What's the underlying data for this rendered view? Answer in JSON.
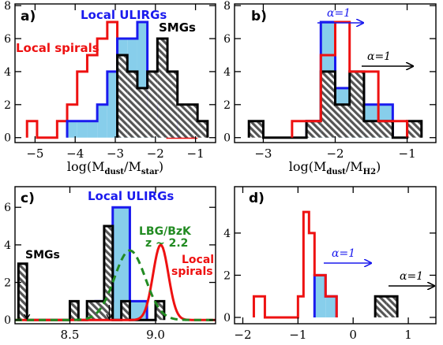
{
  "colors": {
    "spirals": "#ee1111",
    "ulirgs": "#1a1aee",
    "ulirgs_fill": "#87ceeb",
    "smgs": "#000000",
    "hatch_fill": "#999999",
    "lbg": "#228b22"
  },
  "chart_data": [
    {
      "type": "bar",
      "panel_label": "a)",
      "xlabel": "log(M",
      "xlabel_sub1": "dust",
      "xlabel_mid": "/M",
      "xlabel_sub2": "star",
      "xlabel_end": ")",
      "xlim": [
        -5.5,
        -0.5
      ],
      "ylim": [
        -0.3,
        8.1
      ],
      "xticks": [
        -5,
        -4,
        -3,
        -2,
        -1
      ],
      "xtick_labels": [
        "−5",
        "−4",
        "−3",
        "−2",
        "−1"
      ],
      "yticks": [
        0,
        2,
        4,
        6,
        8
      ],
      "ytick_labels": [
        "0",
        "2",
        "4",
        "6",
        "8"
      ],
      "series": [
        {
          "name": "Local spirals",
          "style": "step-red",
          "edges": [
            -5.2,
            -4.95,
            -4.7,
            -4.45,
            -4.2,
            -3.95,
            -3.7,
            -3.45,
            -3.2,
            -2.95,
            -2.7,
            -2.45,
            -2.2,
            -1.95,
            -1.7,
            -1.45,
            -1.2,
            -0.95
          ],
          "values": [
            1,
            0,
            0,
            1,
            2,
            4,
            5,
            6,
            7,
            5,
            4,
            4,
            2,
            1,
            0,
            0,
            0
          ]
        },
        {
          "name": "Local ULIRGs",
          "style": "filled-blue",
          "edges": [
            -4.2,
            -3.95,
            -3.7,
            -3.45,
            -3.2,
            -2.95,
            -2.7,
            -2.45,
            -2.2,
            -1.95,
            -1.7,
            -1.45
          ],
          "values": [
            1,
            1,
            1,
            2,
            4,
            6,
            6,
            7,
            2,
            1,
            1
          ]
        },
        {
          "name": "SMGs",
          "style": "hatched-black",
          "edges": [
            -2.95,
            -2.7,
            -2.45,
            -2.2,
            -1.95,
            -1.7,
            -1.45,
            -1.2,
            -0.95,
            -0.7
          ],
          "values": [
            5,
            4,
            3,
            4,
            6,
            4,
            2,
            2,
            1
          ]
        }
      ],
      "annotations": [
        {
          "text": "Local ULIRGs",
          "color": "ulirgs"
        },
        {
          "text": "Local spirals",
          "color": "spirals"
        },
        {
          "text": "SMGs",
          "color": "smgs"
        }
      ]
    },
    {
      "type": "bar",
      "panel_label": "b)",
      "xlabel": "log(M",
      "xlabel_sub1": "dust",
      "xlabel_mid": "/M",
      "xlabel_sub2": "H2",
      "xlabel_end": ")",
      "xlim": [
        -3.4,
        -0.6
      ],
      "ylim": [
        -0.3,
        8.1
      ],
      "xticks": [
        -3,
        -2,
        -1
      ],
      "xtick_labels": [
        "−3",
        "−2",
        "−1"
      ],
      "yticks": [
        0,
        2,
        4,
        6,
        8
      ],
      "ytick_labels": [
        "0",
        "2",
        "4",
        "6",
        "8"
      ],
      "series": [
        {
          "name": "Local ULIRGs",
          "style": "filled-blue",
          "edges": [
            -2.4,
            -2.2,
            -2.0,
            -1.8,
            -1.6,
            -1.4,
            -1.2
          ],
          "values": [
            1,
            7,
            3,
            3,
            2,
            2
          ]
        },
        {
          "name": "SMGs",
          "style": "hatched-black",
          "edges": [
            -3.2,
            -3.0,
            -2.8,
            -2.6,
            -2.4,
            -2.2,
            -2.0,
            -1.8,
            -1.6,
            -1.4,
            -1.2,
            -1.0,
            -0.8
          ],
          "values": [
            1,
            0,
            0,
            0,
            1,
            4,
            2,
            4,
            1,
            1,
            0,
            1
          ]
        },
        {
          "name": "Local spirals",
          "style": "step-red",
          "edges": [
            -2.6,
            -2.4,
            -2.2,
            -2.0,
            -1.8,
            -1.6,
            -1.4,
            -1.2,
            -1.0
          ],
          "values": [
            1,
            1,
            5,
            7,
            4,
            4,
            1,
            1
          ]
        }
      ],
      "annotations": [
        {
          "text": "α=1",
          "color": "ulirgs"
        },
        {
          "text": "α=1",
          "color": "smgs"
        }
      ]
    },
    {
      "type": "bar",
      "panel_label": "c)",
      "xlabel": "",
      "xlim": [
        8.18,
        9.35
      ],
      "ylim": [
        -0.2,
        7.1
      ],
      "xticks": [
        8.5,
        9.0
      ],
      "xtick_labels": [
        "8.5",
        "9.0"
      ],
      "yticks": [
        0,
        2,
        4,
        6
      ],
      "ytick_labels": [
        "0",
        "2",
        "4",
        "6"
      ],
      "series": [
        {
          "name": "Local ULIRGs",
          "style": "filled-blue",
          "edges": [
            8.65,
            8.75,
            8.85,
            8.95
          ],
          "values": [
            1,
            6,
            1
          ]
        },
        {
          "name": "SMGs",
          "style": "hatched-black",
          "edges": [
            8.2,
            8.25,
            8.3,
            8.35,
            8.4,
            8.45,
            8.5,
            8.55,
            8.6,
            8.65,
            8.7,
            8.75,
            8.8,
            8.85,
            8.9,
            8.95,
            9.0,
            9.05
          ],
          "values": [
            3,
            0,
            0,
            0,
            0,
            0,
            1,
            0,
            1,
            1,
            5,
            0,
            1,
            0,
            0,
            0,
            1
          ]
        },
        {
          "name": "Local spirals",
          "style": "gaussian-red",
          "mu": 9.03,
          "sigma": 0.045,
          "amp": 4.0
        },
        {
          "name": "LBG/BzK z ~ 2.2",
          "style": "gaussian-green-dashed",
          "mu": 8.85,
          "sigma": 0.09,
          "amp": 3.7
        }
      ],
      "arrows_x": [
        8.25,
        8.73
      ],
      "annotations": [
        {
          "text": "Local ULIRGs",
          "color": "ulirgs"
        },
        {
          "text": "LBG/BzK",
          "color": "lbg"
        },
        {
          "text": "z ~ 2.2",
          "color": "lbg"
        },
        {
          "text": "Local",
          "color": "spirals"
        },
        {
          "text": "spirals",
          "color": "spirals"
        },
        {
          "text": "SMGs",
          "color": "smgs"
        }
      ]
    },
    {
      "type": "bar",
      "panel_label": "d)",
      "xlabel": "",
      "xlim": [
        -2.15,
        1.5
      ],
      "ylim": [
        -0.3,
        6.2
      ],
      "xticks": [
        -2,
        -1,
        0,
        1
      ],
      "xtick_labels": [
        "−2",
        "−1",
        "0",
        "1"
      ],
      "yticks": [
        0,
        2,
        4
      ],
      "ytick_labels": [
        "0",
        "2",
        "4"
      ],
      "series": [
        {
          "name": "Local ULIRGs",
          "style": "filled-blue",
          "edges": [
            -0.7,
            -0.5,
            -0.3
          ],
          "values": [
            2,
            1
          ]
        },
        {
          "name": "Local spirals",
          "style": "step-red",
          "edges": [
            -1.8,
            -1.7,
            -1.6,
            -1.5,
            -1.4,
            -1.3,
            -1.2,
            -1.1,
            -1.0,
            -0.9,
            -0.8,
            -0.7,
            -0.6,
            -0.5,
            -0.4,
            -0.3
          ],
          "values": [
            1,
            1,
            0,
            0,
            0,
            0,
            0,
            0,
            1,
            5,
            4,
            2,
            2,
            1,
            1
          ]
        },
        {
          "name": "SMGs",
          "style": "hatched-black",
          "edges": [
            0.4,
            0.6,
            0.8
          ],
          "values": [
            1,
            1
          ]
        }
      ],
      "annotations": [
        {
          "text": "α=1",
          "color": "ulirgs"
        },
        {
          "text": "α=1",
          "color": "smgs"
        }
      ]
    }
  ]
}
